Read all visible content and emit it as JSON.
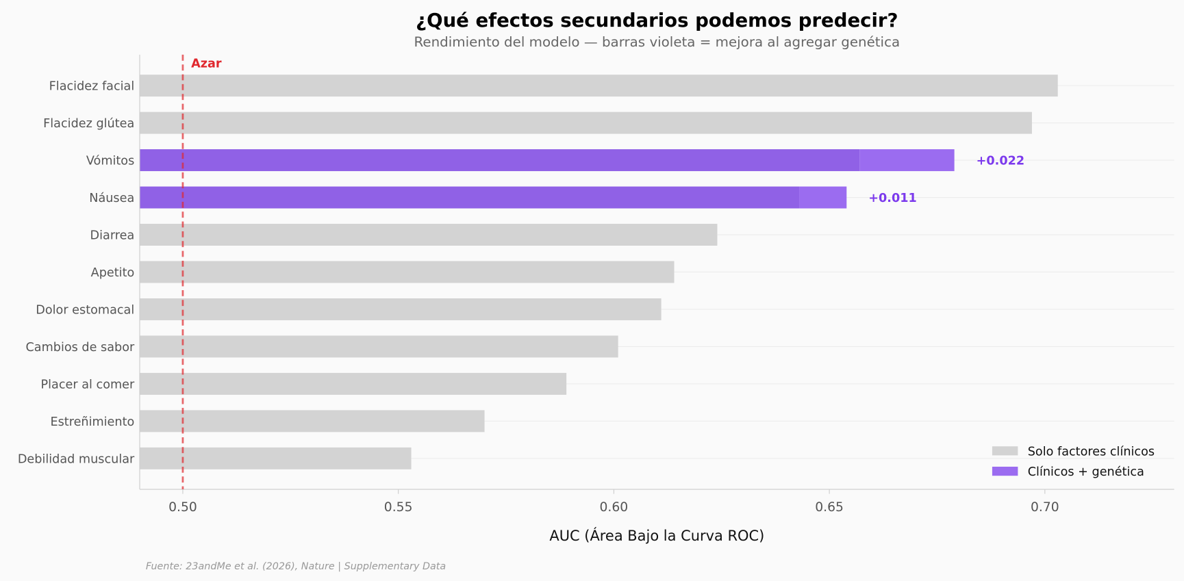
{
  "chart_data": {
    "type": "bar",
    "orientation": "horizontal",
    "title": "¿Qué efectos secundarios podemos predecir?",
    "subtitle": "Rendimiento del modelo — barras violeta = mejora al agregar genética",
    "xlabel": "AUC (Área Bajo la Curva ROC)",
    "ylabel": "",
    "xlim": [
      0.49,
      0.73
    ],
    "xticks": [
      "0.50",
      "0.55",
      "0.60",
      "0.65",
      "0.70"
    ],
    "grid": "horizontal",
    "legend_position": "bottom-right",
    "reference_line": {
      "value": 0.5,
      "label": "Azar",
      "color": "#e0282e"
    },
    "categories": [
      "Flacidez facial",
      "Flacidez glútea",
      "Vómitos",
      "Náusea",
      "Diarrea",
      "Apetito",
      "Dolor estomacal",
      "Cambios de sabor",
      "Placer al comer",
      "Estreñimiento",
      "Debilidad muscular"
    ],
    "series": [
      {
        "name": "Solo factores clínicos",
        "color": "#d3d3d3",
        "values": [
          0.703,
          0.697,
          0.657,
          0.643,
          0.624,
          0.614,
          0.611,
          0.601,
          0.589,
          0.57,
          0.553
        ]
      },
      {
        "name": "Clínicos + genética",
        "color": "#9b6cf0",
        "values": [
          null,
          null,
          0.679,
          0.654,
          null,
          null,
          null,
          null,
          null,
          null,
          null
        ]
      }
    ],
    "annotations": [
      {
        "category": "Vómitos",
        "text": "+0.022"
      },
      {
        "category": "Náusea",
        "text": "+0.011"
      }
    ],
    "source": "Fuente: 23andMe et al. (2026), Nature | Supplementary Data",
    "colors": {
      "improved_base": "#9061e6",
      "annotation": "#7c3aed",
      "text": "#555555"
    }
  }
}
